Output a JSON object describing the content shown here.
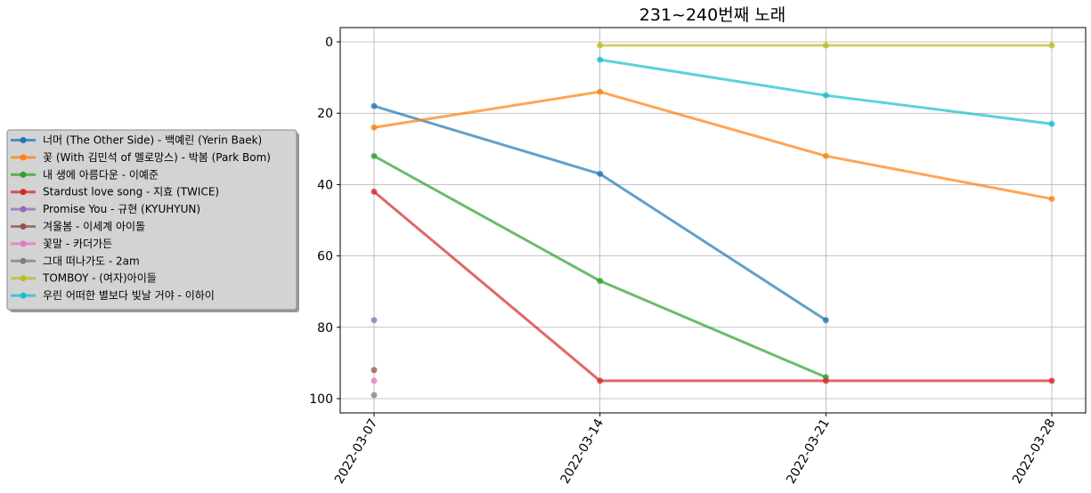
{
  "chart_data": {
    "type": "line",
    "title": "231~240번째 노래",
    "xlabel": "",
    "ylabel": "",
    "x": [
      "2022-03-07",
      "2022-03-14",
      "2022-03-21",
      "2022-03-28"
    ],
    "ylim": [
      104,
      -4
    ],
    "y_inverted": true,
    "y_ticks": [
      0,
      20,
      40,
      60,
      80,
      100
    ],
    "grid": true,
    "legend_position": "center-left (outside plot)",
    "series": [
      {
        "name": "너머 (The Other Side) - 백예린 (Yerin Baek)",
        "color": "#1f77b4",
        "values": [
          18,
          37,
          78,
          null
        ]
      },
      {
        "name": "꽃 (With 김민석 of 멜로망스) - 박봄 (Park Bom)",
        "color": "#ff7f0e",
        "values": [
          24,
          14,
          32,
          44
        ]
      },
      {
        "name": "내 생에 아름다운 - 이예준",
        "color": "#2ca02c",
        "values": [
          32,
          67,
          94,
          null
        ]
      },
      {
        "name": "Stardust love song - 지효 (TWICE)",
        "color": "#d62728",
        "values": [
          42,
          95,
          95,
          95
        ]
      },
      {
        "name": "Promise You - 규현 (KYUHYUN)",
        "color": "#9467bd",
        "values": [
          78,
          null,
          null,
          null
        ]
      },
      {
        "name": "겨울봄 - 이세계 아이돌",
        "color": "#8c564b",
        "values": [
          92,
          null,
          null,
          null
        ]
      },
      {
        "name": "꽃말 - 카더가든",
        "color": "#e377c2",
        "values": [
          95,
          null,
          null,
          null
        ]
      },
      {
        "name": "그대 떠나가도 - 2am",
        "color": "#7f7f7f",
        "values": [
          99,
          null,
          null,
          null
        ]
      },
      {
        "name": "TOMBOY - (여자)아이들",
        "color": "#bcbd22",
        "values": [
          null,
          1,
          1,
          1
        ]
      },
      {
        "name": "우린 어떠한 별보다 빛날 거야 - 이하이",
        "color": "#17becf",
        "values": [
          null,
          5,
          15,
          23
        ]
      }
    ]
  }
}
